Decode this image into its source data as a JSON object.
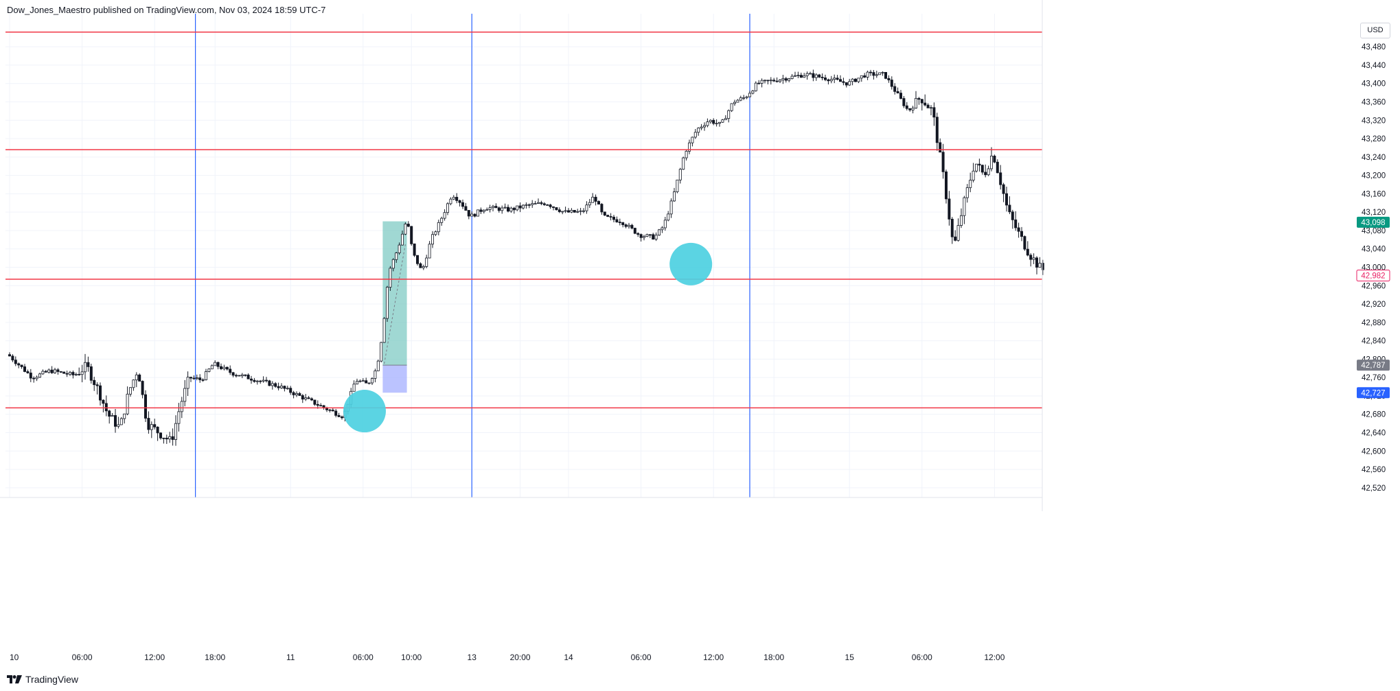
{
  "header": {
    "text": "Dow_Jones_Maestro published on TradingView.com, Nov 03, 2024 18:59 UTC-7"
  },
  "footer": {
    "brand": "TradingView"
  },
  "price_axis": {
    "currency": "USD"
  },
  "colors": {
    "horizontal_line": "#f23645",
    "vertical_line": "#2962ff",
    "circle": "#4dd0e1",
    "zone_upper": "#80cbc4",
    "zone_lower": "#aab4ff",
    "last_price_badge": "#089981",
    "gray_badge": "#787b86",
    "blue_badge": "#2962ff",
    "pink_label": "#e91e63"
  },
  "chart_data": {
    "type": "candlestick",
    "ylim": [
      42485,
      43520
    ],
    "y_ticks": [
      43480,
      43440,
      43400,
      43360,
      43320,
      43280,
      43240,
      43200,
      43160,
      43120,
      43080,
      43040,
      43000,
      42960,
      42920,
      42880,
      42840,
      42800,
      42760,
      42720,
      42680,
      42640,
      42600,
      42560,
      42520
    ],
    "x_ticks": [
      {
        "label": "10",
        "bar": 0
      },
      {
        "label": "06:00",
        "bar": 24
      },
      {
        "label": "12:00",
        "bar": 48
      },
      {
        "label": "18:00",
        "bar": 68
      },
      {
        "label": "11",
        "bar": 93
      },
      {
        "label": "06:00",
        "bar": 117
      },
      {
        "label": "10:00",
        "bar": 133
      },
      {
        "label": "13",
        "bar": 153
      },
      {
        "label": "20:00",
        "bar": 169
      },
      {
        "label": "14",
        "bar": 185
      },
      {
        "label": "06:00",
        "bar": 209
      },
      {
        "label": "12:00",
        "bar": 233
      },
      {
        "label": "18:00",
        "bar": 253
      },
      {
        "label": "15",
        "bar": 278
      },
      {
        "label": "06:00",
        "bar": 302
      },
      {
        "label": "12:00",
        "bar": 326
      }
    ],
    "horizontal_lines": [
      43512,
      43256,
      42974,
      42694
    ],
    "vertical_lines_bar": [
      61.5,
      153,
      245
    ],
    "circles": [
      {
        "bar": 117.5,
        "price": 42687
      },
      {
        "bar": 225.5,
        "price": 43007
      }
    ],
    "zone": {
      "bar_start": 123.5,
      "bar_end": 131.5,
      "top": 43100,
      "mid": 42787,
      "bottom": 42727
    },
    "price_labels": [
      {
        "value": "43,098",
        "price": 43098,
        "style": "green"
      },
      {
        "value": "42,982",
        "price": 42982,
        "style": "pink"
      },
      {
        "value": "42,787",
        "price": 42787,
        "style": "gray"
      },
      {
        "value": "42,727",
        "price": 42727,
        "style": "blue"
      }
    ],
    "path": [
      {
        "bar": 0,
        "price": 42810
      },
      {
        "bar": 8,
        "price": 42760
      },
      {
        "bar": 14,
        "price": 42775
      },
      {
        "bar": 22,
        "price": 42765
      },
      {
        "bar": 26,
        "price": 42785
      },
      {
        "bar": 30,
        "price": 42730
      },
      {
        "bar": 33,
        "price": 42680
      },
      {
        "bar": 37,
        "price": 42650
      },
      {
        "bar": 40,
        "price": 42730
      },
      {
        "bar": 43,
        "price": 42780
      },
      {
        "bar": 46,
        "price": 42660
      },
      {
        "bar": 50,
        "price": 42640
      },
      {
        "bar": 54,
        "price": 42620
      },
      {
        "bar": 57,
        "price": 42700
      },
      {
        "bar": 60,
        "price": 42760
      },
      {
        "bar": 64,
        "price": 42755
      },
      {
        "bar": 68,
        "price": 42790
      },
      {
        "bar": 74,
        "price": 42770
      },
      {
        "bar": 82,
        "price": 42755
      },
      {
        "bar": 90,
        "price": 42740
      },
      {
        "bar": 98,
        "price": 42715
      },
      {
        "bar": 106,
        "price": 42690
      },
      {
        "bar": 111,
        "price": 42675
      },
      {
        "bar": 115,
        "price": 42755
      },
      {
        "bar": 119,
        "price": 42745
      },
      {
        "bar": 122,
        "price": 42780
      },
      {
        "bar": 124,
        "price": 42860
      },
      {
        "bar": 126,
        "price": 42990
      },
      {
        "bar": 129,
        "price": 43040
      },
      {
        "bar": 132,
        "price": 43105
      },
      {
        "bar": 134,
        "price": 43030
      },
      {
        "bar": 137,
        "price": 42990
      },
      {
        "bar": 140,
        "price": 43060
      },
      {
        "bar": 143,
        "price": 43100
      },
      {
        "bar": 147,
        "price": 43160
      },
      {
        "bar": 150,
        "price": 43140
      },
      {
        "bar": 153,
        "price": 43110
      },
      {
        "bar": 158,
        "price": 43130
      },
      {
        "bar": 166,
        "price": 43125
      },
      {
        "bar": 172,
        "price": 43135
      },
      {
        "bar": 178,
        "price": 43140
      },
      {
        "bar": 184,
        "price": 43120
      },
      {
        "bar": 190,
        "price": 43120
      },
      {
        "bar": 194,
        "price": 43155
      },
      {
        "bar": 197,
        "price": 43110
      },
      {
        "bar": 203,
        "price": 43100
      },
      {
        "bar": 209,
        "price": 43070
      },
      {
        "bar": 214,
        "price": 43065
      },
      {
        "bar": 217,
        "price": 43090
      },
      {
        "bar": 220,
        "price": 43150
      },
      {
        "bar": 224,
        "price": 43250
      },
      {
        "bar": 228,
        "price": 43300
      },
      {
        "bar": 232,
        "price": 43320
      },
      {
        "bar": 236,
        "price": 43310
      },
      {
        "bar": 240,
        "price": 43360
      },
      {
        "bar": 244,
        "price": 43370
      },
      {
        "bar": 248,
        "price": 43400
      },
      {
        "bar": 256,
        "price": 43410
      },
      {
        "bar": 264,
        "price": 43420
      },
      {
        "bar": 272,
        "price": 43410
      },
      {
        "bar": 278,
        "price": 43400
      },
      {
        "bar": 284,
        "price": 43420
      },
      {
        "bar": 290,
        "price": 43420
      },
      {
        "bar": 294,
        "price": 43380
      },
      {
        "bar": 298,
        "price": 43340
      },
      {
        "bar": 302,
        "price": 43370
      },
      {
        "bar": 306,
        "price": 43340
      },
      {
        "bar": 310,
        "price": 43180
      },
      {
        "bar": 313,
        "price": 43040
      },
      {
        "bar": 316,
        "price": 43130
      },
      {
        "bar": 320,
        "price": 43230
      },
      {
        "bar": 323,
        "price": 43200
      },
      {
        "bar": 326,
        "price": 43250
      },
      {
        "bar": 328,
        "price": 43200
      },
      {
        "bar": 331,
        "price": 43120
      },
      {
        "bar": 334,
        "price": 43080
      },
      {
        "bar": 338,
        "price": 43030
      },
      {
        "bar": 342,
        "price": 42995
      }
    ]
  }
}
